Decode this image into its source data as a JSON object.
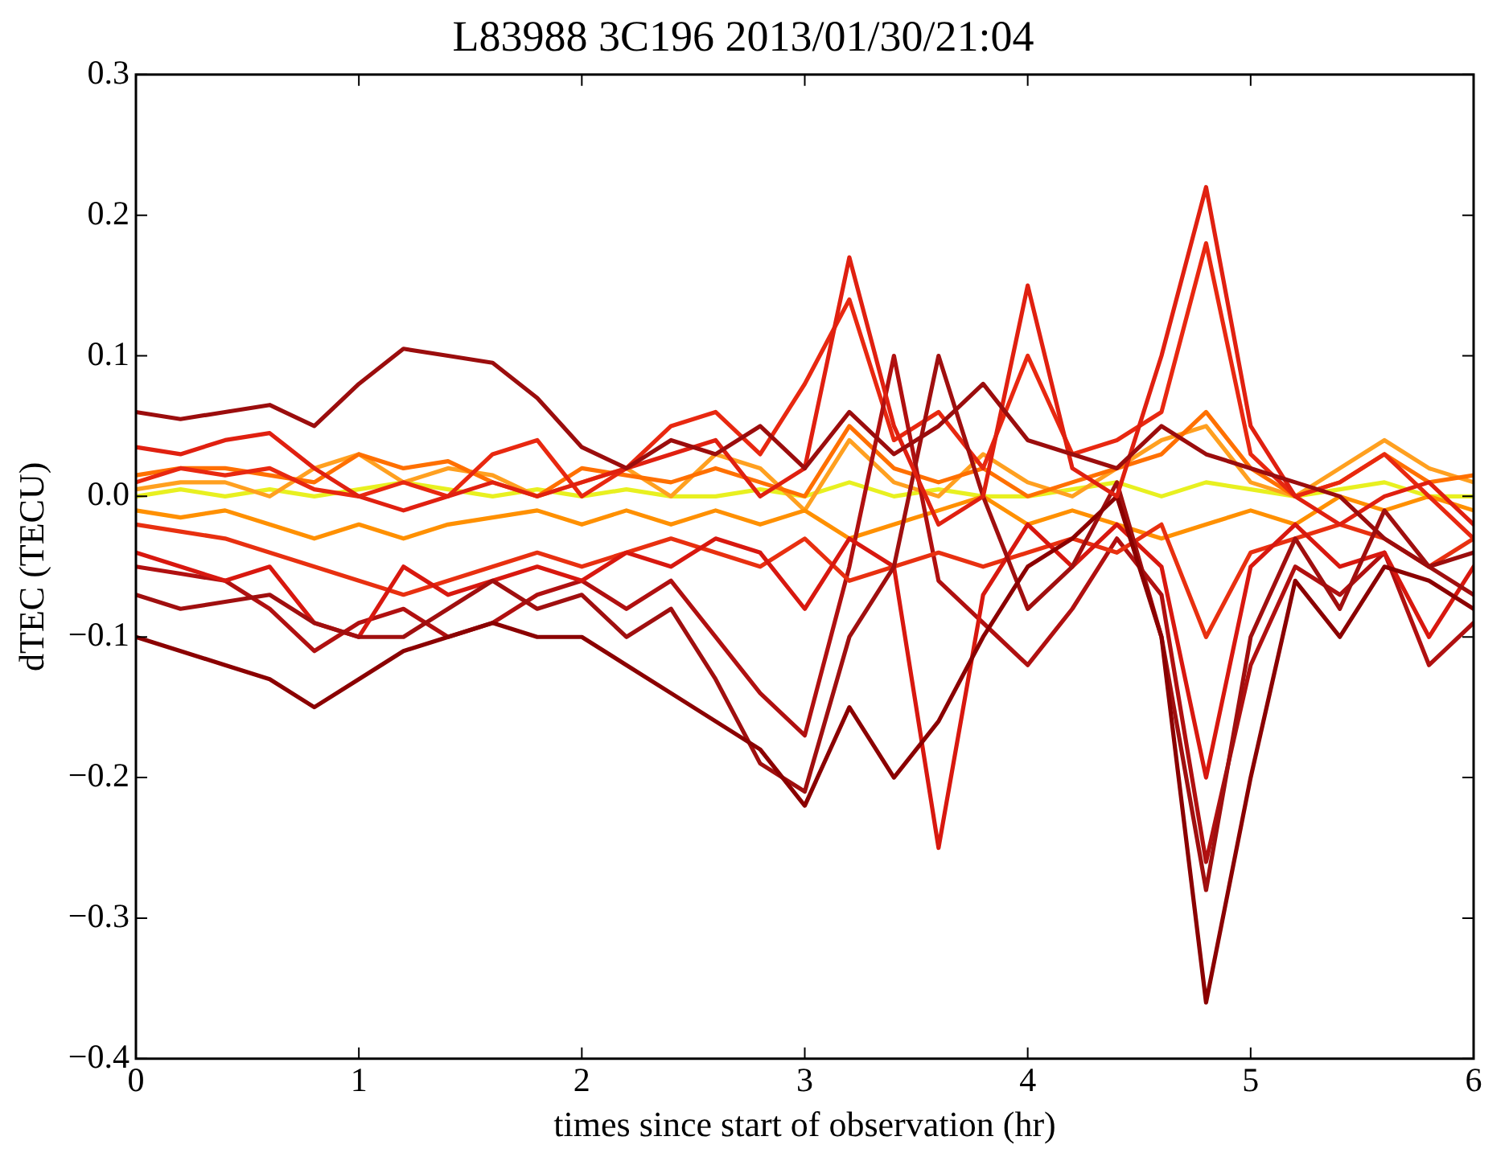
{
  "chart_data": {
    "type": "line",
    "title": "L83988 3C196 2013/01/30/21:04",
    "xlabel": "times since start of observation (hr)",
    "ylabel": "dTEC (TECU)",
    "x": [
      0,
      0.2,
      0.4,
      0.6,
      0.8,
      1.0,
      1.2,
      1.4,
      1.6,
      1.8,
      2.0,
      2.2,
      2.4,
      2.6,
      2.8,
      3.0,
      3.2,
      3.4,
      3.6,
      3.8,
      4.0,
      4.2,
      4.4,
      4.6,
      4.8,
      5.0,
      5.2,
      5.4,
      5.6,
      5.8,
      6.0
    ],
    "xlim": [
      0,
      6
    ],
    "xticks": [
      0,
      1,
      2,
      3,
      4,
      5,
      6
    ],
    "ylim": [
      -0.4,
      0.3
    ],
    "yticks": [
      {
        "value": -0.4,
        "label": "−0.4"
      },
      {
        "value": -0.3,
        "label": "−0.3"
      },
      {
        "value": -0.2,
        "label": "−0.2"
      },
      {
        "value": -0.1,
        "label": "−0.1"
      },
      {
        "value": 0,
        "label": "0.0"
      },
      {
        "value": 0.1,
        "label": "0.1"
      },
      {
        "value": 0.2,
        "label": "0.2"
      },
      {
        "value": 0.3,
        "label": "0.3"
      }
    ],
    "grid": false,
    "legend": false,
    "marker": "none",
    "line_style": "solid",
    "series": [
      {
        "color": "#9b0d0d",
        "values": [
          0.06,
          0.055,
          0.06,
          0.065,
          0.05,
          0.08,
          0.105,
          0.1,
          0.095,
          0.07,
          0.035,
          0.02,
          0.04,
          0.03,
          0.05,
          0.02,
          0.06,
          0.03,
          0.05,
          0.08,
          0.04,
          0.03,
          0.02,
          0.05,
          0.03,
          0.02,
          0.01,
          0.0,
          -0.03,
          -0.05,
          -0.04
        ]
      },
      {
        "color": "#e02010",
        "values": [
          0.035,
          0.03,
          0.04,
          0.045,
          0.02,
          0.0,
          -0.01,
          0.0,
          0.01,
          0.0,
          0.01,
          0.02,
          0.03,
          0.04,
          0.0,
          0.02,
          0.17,
          0.05,
          -0.02,
          0.0,
          0.15,
          0.02,
          0.0,
          0.1,
          0.22,
          0.05,
          0.0,
          -0.02,
          0.0,
          0.01,
          -0.02
        ]
      },
      {
        "color": "#8b0000",
        "values": [
          -0.1,
          -0.11,
          -0.12,
          -0.13,
          -0.15,
          -0.13,
          -0.11,
          -0.1,
          -0.09,
          -0.1,
          -0.1,
          -0.12,
          -0.14,
          -0.16,
          -0.18,
          -0.22,
          -0.15,
          -0.2,
          -0.16,
          -0.1,
          -0.05,
          -0.03,
          0.0,
          -0.1,
          -0.36,
          -0.2,
          -0.06,
          -0.1,
          -0.05,
          -0.06,
          -0.08
        ]
      },
      {
        "color": "#a00f0f",
        "values": [
          -0.07,
          -0.08,
          -0.075,
          -0.07,
          -0.09,
          -0.1,
          -0.1,
          -0.08,
          -0.06,
          -0.08,
          -0.07,
          -0.1,
          -0.08,
          -0.13,
          -0.19,
          -0.21,
          -0.1,
          -0.05,
          0.1,
          0.0,
          -0.08,
          -0.05,
          0.01,
          -0.1,
          -0.28,
          -0.1,
          -0.03,
          -0.08,
          -0.01,
          -0.05,
          -0.07
        ]
      },
      {
        "color": "#d8180f",
        "values": [
          -0.04,
          -0.05,
          -0.06,
          -0.05,
          -0.09,
          -0.1,
          -0.05,
          -0.07,
          -0.06,
          -0.05,
          -0.06,
          -0.04,
          -0.05,
          -0.03,
          -0.04,
          -0.08,
          -0.03,
          -0.05,
          -0.25,
          -0.07,
          -0.02,
          -0.05,
          -0.02,
          -0.05,
          -0.2,
          -0.05,
          -0.02,
          -0.05,
          -0.04,
          -0.1,
          -0.05
        ]
      },
      {
        "color": "#e83010",
        "values": [
          -0.02,
          -0.025,
          -0.03,
          -0.04,
          -0.05,
          -0.06,
          -0.07,
          -0.06,
          -0.05,
          -0.04,
          -0.05,
          -0.04,
          -0.03,
          -0.04,
          -0.05,
          -0.03,
          -0.06,
          -0.05,
          -0.04,
          -0.05,
          -0.04,
          -0.03,
          -0.04,
          -0.02,
          -0.1,
          -0.04,
          -0.03,
          -0.02,
          -0.03,
          -0.05,
          -0.03
        ]
      },
      {
        "color": "#b01010",
        "values": [
          -0.05,
          -0.055,
          -0.06,
          -0.08,
          -0.11,
          -0.09,
          -0.08,
          -0.1,
          -0.09,
          -0.07,
          -0.06,
          -0.08,
          -0.06,
          -0.1,
          -0.14,
          -0.17,
          -0.05,
          0.1,
          -0.06,
          -0.09,
          -0.12,
          -0.08,
          -0.03,
          -0.07,
          -0.26,
          -0.12,
          -0.05,
          -0.07,
          -0.04,
          -0.12,
          -0.09
        ]
      },
      {
        "color": "#e82810",
        "values": [
          0.01,
          0.02,
          0.015,
          0.02,
          0.005,
          0.0,
          0.01,
          0.0,
          0.03,
          0.04,
          0.0,
          0.02,
          0.05,
          0.06,
          0.03,
          0.08,
          0.14,
          0.04,
          0.06,
          0.02,
          0.1,
          0.03,
          0.04,
          0.06,
          0.18,
          0.03,
          0.0,
          0.01,
          0.03,
          0.0,
          -0.03
        ]
      },
      {
        "color": "#ff7000",
        "values": [
          0.015,
          0.02,
          0.02,
          0.015,
          0.01,
          0.03,
          0.02,
          0.025,
          0.01,
          0.0,
          0.02,
          0.015,
          0.01,
          0.02,
          0.01,
          0.0,
          0.05,
          0.02,
          0.01,
          0.02,
          0.0,
          0.01,
          0.02,
          0.03,
          0.06,
          0.02,
          0.0,
          0.01,
          0.03,
          0.01,
          0.015
        ]
      },
      {
        "color": "#ff9000",
        "values": [
          -0.01,
          -0.015,
          -0.01,
          -0.02,
          -0.03,
          -0.02,
          -0.03,
          -0.02,
          -0.015,
          -0.01,
          -0.02,
          -0.01,
          -0.02,
          -0.01,
          -0.02,
          -0.01,
          -0.03,
          -0.02,
          -0.01,
          0.0,
          -0.02,
          -0.01,
          -0.02,
          -0.03,
          -0.02,
          -0.01,
          -0.02,
          0.0,
          -0.01,
          0.0,
          -0.01
        ]
      },
      {
        "color": "#ffa020",
        "values": [
          0.005,
          0.01,
          0.01,
          0.0,
          0.02,
          0.03,
          0.01,
          0.02,
          0.015,
          0.0,
          0.01,
          0.02,
          0.0,
          0.03,
          0.02,
          -0.01,
          0.04,
          0.01,
          0.0,
          0.03,
          0.01,
          0.0,
          0.02,
          0.04,
          0.05,
          0.01,
          0.0,
          0.02,
          0.04,
          0.02,
          0.01
        ]
      },
      {
        "color": "#e8f020",
        "values": [
          0.0,
          0.005,
          0.0,
          0.005,
          0.0,
          0.005,
          0.01,
          0.005,
          0.0,
          0.005,
          0.0,
          0.005,
          0.0,
          0.0,
          0.005,
          0.0,
          0.01,
          0.0,
          0.005,
          0.0,
          0.0,
          0.005,
          0.01,
          0.0,
          0.01,
          0.005,
          0.0,
          0.005,
          0.01,
          0.0,
          0.0
        ]
      }
    ]
  }
}
